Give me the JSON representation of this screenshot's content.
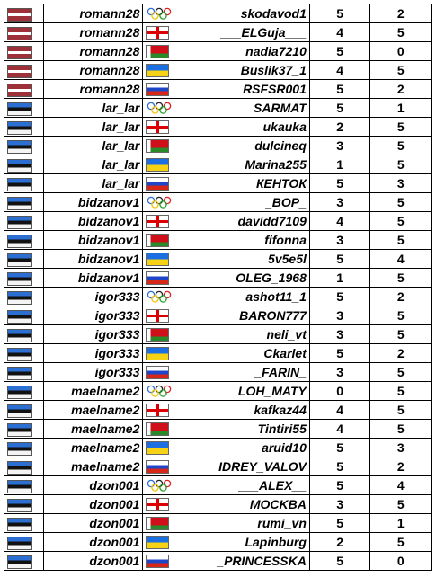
{
  "colors": {
    "latvia": "#9e3039",
    "estonia": "#2a6fd1",
    "georgia": "#dd0000",
    "belarus": "#cf101a",
    "ukraine": "#1b6fe0",
    "russia": "#1f46c8"
  },
  "rows": [
    {
      "flag1": "latvia",
      "p1": "romann28",
      "flag2": "olympic",
      "p2": "skodavod1",
      "s1": "5",
      "s2": "2"
    },
    {
      "flag1": "latvia",
      "p1": "romann28",
      "flag2": "georgia",
      "p2": "___ELGuja___",
      "s1": "4",
      "s2": "5"
    },
    {
      "flag1": "latvia",
      "p1": "romann28",
      "flag2": "belarus",
      "p2": "nadia7210",
      "s1": "5",
      "s2": "0"
    },
    {
      "flag1": "latvia",
      "p1": "romann28",
      "flag2": "ukraine",
      "p2": "Buslik37_1",
      "s1": "4",
      "s2": "5"
    },
    {
      "flag1": "latvia",
      "p1": "romann28",
      "flag2": "russia",
      "p2": "RSFSR001",
      "s1": "5",
      "s2": "2"
    },
    {
      "flag1": "estonia",
      "p1": "lar_lar",
      "flag2": "olympic",
      "p2": "SARMAT",
      "s1": "5",
      "s2": "1"
    },
    {
      "flag1": "estonia",
      "p1": "lar_lar",
      "flag2": "georgia",
      "p2": "ukauka",
      "s1": "2",
      "s2": "5"
    },
    {
      "flag1": "estonia",
      "p1": "lar_lar",
      "flag2": "belarus",
      "p2": "dulcineq",
      "s1": "3",
      "s2": "5"
    },
    {
      "flag1": "estonia",
      "p1": "lar_lar",
      "flag2": "ukraine",
      "p2": "Marina255",
      "s1": "1",
      "s2": "5"
    },
    {
      "flag1": "estonia",
      "p1": "lar_lar",
      "flag2": "russia",
      "p2": "КЕНТОК",
      "s1": "5",
      "s2": "3"
    },
    {
      "flag1": "estonia",
      "p1": "bidzanov1",
      "flag2": "olympic",
      "p2": "_BOP_",
      "s1": "3",
      "s2": "5"
    },
    {
      "flag1": "estonia",
      "p1": "bidzanov1",
      "flag2": "georgia",
      "p2": "davidd7109",
      "s1": "4",
      "s2": "5"
    },
    {
      "flag1": "estonia",
      "p1": "bidzanov1",
      "flag2": "belarus",
      "p2": "fifonna",
      "s1": "3",
      "s2": "5"
    },
    {
      "flag1": "estonia",
      "p1": "bidzanov1",
      "flag2": "ukraine",
      "p2": "5v5e5l",
      "s1": "5",
      "s2": "4"
    },
    {
      "flag1": "estonia",
      "p1": "bidzanov1",
      "flag2": "russia",
      "p2": "OLEG_1968",
      "s1": "1",
      "s2": "5"
    },
    {
      "flag1": "estonia",
      "p1": "igor333",
      "flag2": "olympic",
      "p2": "ashot11_1",
      "s1": "5",
      "s2": "2"
    },
    {
      "flag1": "estonia",
      "p1": "igor333",
      "flag2": "georgia",
      "p2": "BARON777",
      "s1": "3",
      "s2": "5"
    },
    {
      "flag1": "estonia",
      "p1": "igor333",
      "flag2": "belarus",
      "p2": "neli_vt",
      "s1": "3",
      "s2": "5"
    },
    {
      "flag1": "estonia",
      "p1": "igor333",
      "flag2": "ukraine",
      "p2": "Ckarlet",
      "s1": "5",
      "s2": "2"
    },
    {
      "flag1": "estonia",
      "p1": "igor333",
      "flag2": "russia",
      "p2": "_FARIN_",
      "s1": "3",
      "s2": "5"
    },
    {
      "flag1": "estonia",
      "p1": "maelname2",
      "flag2": "olympic",
      "p2": "LOH_MATY",
      "s1": "0",
      "s2": "5"
    },
    {
      "flag1": "estonia",
      "p1": "maelname2",
      "flag2": "georgia",
      "p2": "kafkaz44",
      "s1": "4",
      "s2": "5"
    },
    {
      "flag1": "estonia",
      "p1": "maelname2",
      "flag2": "belarus",
      "p2": "Tintiri55",
      "s1": "4",
      "s2": "5"
    },
    {
      "flag1": "estonia",
      "p1": "maelname2",
      "flag2": "ukraine",
      "p2": "aruid10",
      "s1": "5",
      "s2": "3"
    },
    {
      "flag1": "estonia",
      "p1": "maelname2",
      "flag2": "russia",
      "p2": "IDREY_VALOV",
      "s1": "5",
      "s2": "2"
    },
    {
      "flag1": "estonia",
      "p1": "dzon001",
      "flag2": "olympic",
      "p2": "___ALEX__",
      "s1": "5",
      "s2": "4"
    },
    {
      "flag1": "estonia",
      "p1": "dzon001",
      "flag2": "georgia",
      "p2": "_MOCKBA",
      "s1": "3",
      "s2": "5"
    },
    {
      "flag1": "estonia",
      "p1": "dzon001",
      "flag2": "belarus",
      "p2": "rumi_vn",
      "s1": "5",
      "s2": "1"
    },
    {
      "flag1": "estonia",
      "p1": "dzon001",
      "flag2": "ukraine",
      "p2": "Lapinburg",
      "s1": "2",
      "s2": "5"
    },
    {
      "flag1": "estonia",
      "p1": "dzon001",
      "flag2": "russia",
      "p2": "_PRINCESSKA",
      "s1": "5",
      "s2": "0"
    }
  ]
}
